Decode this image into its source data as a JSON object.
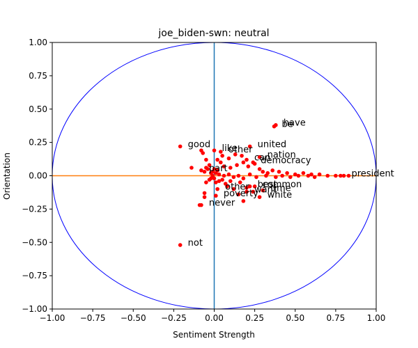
{
  "chart_data": {
    "type": "scatter",
    "title": "joe_biden-swn: neutral",
    "xlabel": "Sentiment Strength",
    "ylabel": "Orientation",
    "xlim": [
      -1.0,
      1.0
    ],
    "ylim": [
      -1.0,
      1.0
    ],
    "xticks": [
      "−1.00",
      "−0.75",
      "−0.50",
      "−0.25",
      "0.00",
      "0.25",
      "0.50",
      "0.75",
      "1.00"
    ],
    "yticks": [
      "−1.00",
      "−0.75",
      "−0.50",
      "−0.25",
      "0.00",
      "0.25",
      "0.50",
      "0.75",
      "1.00"
    ],
    "grid": false,
    "colors": {
      "points": "#ff0000",
      "circle": "#0000ff",
      "vertical_axis_line": "#1f77b4",
      "horizontal_axis_line": "#ff7f0e"
    },
    "labeled_points": [
      {
        "label": "be",
        "x": 0.37,
        "y": 0.37
      },
      {
        "label": "have",
        "x": 0.38,
        "y": 0.38
      },
      {
        "label": "good",
        "x": -0.21,
        "y": 0.22
      },
      {
        "label": "united",
        "x": 0.22,
        "y": 0.22
      },
      {
        "label": "like",
        "x": 0.0,
        "y": 0.19
      },
      {
        "label": "other",
        "x": 0.04,
        "y": 0.18
      },
      {
        "label": "nation",
        "x": 0.28,
        "y": 0.14
      },
      {
        "label": "democracy",
        "x": 0.24,
        "y": 0.1
      },
      {
        "label": "can",
        "x": 0.2,
        "y": 0.12
      },
      {
        "label": "part",
        "x": -0.08,
        "y": 0.04
      },
      {
        "label": "best",
        "x": 0.22,
        "y": -0.08
      },
      {
        "label": "common",
        "x": 0.25,
        "y": -0.08
      },
      {
        "label": "other",
        "x": 0.02,
        "y": -0.1
      },
      {
        "label": "want",
        "x": 0.2,
        "y": -0.12
      },
      {
        "label": "time",
        "x": 0.3,
        "y": -0.11
      },
      {
        "label": "poverty",
        "x": 0.01,
        "y": -0.15
      },
      {
        "label": "white",
        "x": 0.28,
        "y": -0.16
      },
      {
        "label": "never",
        "x": -0.08,
        "y": -0.22
      },
      {
        "label": "not",
        "x": -0.21,
        "y": -0.52
      },
      {
        "label": "president",
        "x": 0.8,
        "y": 0.0
      }
    ],
    "unlabeled_points": [
      {
        "x": -0.08,
        "y": 0.19
      },
      {
        "x": -0.07,
        "y": 0.17
      },
      {
        "x": -0.05,
        "y": 0.12
      },
      {
        "x": -0.14,
        "y": 0.06
      },
      {
        "x": -0.05,
        "y": 0.06
      },
      {
        "x": -0.04,
        "y": 0.05
      },
      {
        "x": -0.03,
        "y": 0.08
      },
      {
        "x": -0.06,
        "y": 0.03
      },
      {
        "x": -0.02,
        "y": -0.02
      },
      {
        "x": -0.01,
        "y": 0.03
      },
      {
        "x": 0.0,
        "y": 0.05
      },
      {
        "x": 0.01,
        "y": 0.02
      },
      {
        "x": 0.02,
        "y": 0.04
      },
      {
        "x": -0.02,
        "y": 0.02
      },
      {
        "x": -0.03,
        "y": -0.03
      },
      {
        "x": -0.05,
        "y": -0.05
      },
      {
        "x": -0.06,
        "y": -0.13
      },
      {
        "x": -0.06,
        "y": -0.16
      },
      {
        "x": -0.09,
        "y": -0.22
      },
      {
        "x": 0.01,
        "y": -0.05
      },
      {
        "x": 0.03,
        "y": -0.04
      },
      {
        "x": 0.05,
        "y": -0.03
      },
      {
        "x": 0.08,
        "y": -0.08
      },
      {
        "x": 0.12,
        "y": -0.1
      },
      {
        "x": 0.15,
        "y": -0.14
      },
      {
        "x": 0.18,
        "y": -0.19
      },
      {
        "x": 0.2,
        "y": -0.09
      },
      {
        "x": 0.24,
        "y": -0.12
      },
      {
        "x": 0.04,
        "y": 0.1
      },
      {
        "x": 0.06,
        "y": 0.07
      },
      {
        "x": 0.1,
        "y": 0.06
      },
      {
        "x": 0.14,
        "y": 0.08
      },
      {
        "x": 0.18,
        "y": 0.1
      },
      {
        "x": 0.21,
        "y": 0.07
      },
      {
        "x": 0.25,
        "y": 0.09
      },
      {
        "x": 0.28,
        "y": 0.05
      },
      {
        "x": 0.3,
        "y": 0.03
      },
      {
        "x": 0.33,
        "y": 0.02
      },
      {
        "x": 0.36,
        "y": 0.04
      },
      {
        "x": 0.4,
        "y": 0.03
      },
      {
        "x": 0.45,
        "y": 0.02
      },
      {
        "x": 0.5,
        "y": 0.01
      },
      {
        "x": 0.55,
        "y": 0.02
      },
      {
        "x": 0.6,
        "y": 0.01
      },
      {
        "x": 0.65,
        "y": 0.01
      },
      {
        "x": 0.7,
        "y": 0.0
      },
      {
        "x": 0.75,
        "y": 0.0
      },
      {
        "x": 0.78,
        "y": 0.0
      },
      {
        "x": 0.83,
        "y": 0.0
      },
      {
        "x": 0.06,
        "y": 0.0
      },
      {
        "x": 0.09,
        "y": 0.01
      },
      {
        "x": 0.12,
        "y": -0.01
      },
      {
        "x": 0.15,
        "y": 0.0
      },
      {
        "x": 0.18,
        "y": -0.02
      },
      {
        "x": 0.22,
        "y": 0.01
      },
      {
        "x": 0.26,
        "y": -0.01
      },
      {
        "x": 0.32,
        "y": 0.0
      },
      {
        "x": 0.38,
        "y": -0.01
      },
      {
        "x": 0.42,
        "y": 0.0
      },
      {
        "x": 0.47,
        "y": -0.01
      },
      {
        "x": 0.52,
        "y": 0.0
      },
      {
        "x": 0.58,
        "y": 0.0
      },
      {
        "x": 0.62,
        "y": -0.01
      },
      {
        "x": 0.03,
        "y": 0.01
      },
      {
        "x": 0.0,
        "y": -0.02
      },
      {
        "x": -0.01,
        "y": 0.0
      },
      {
        "x": 0.16,
        "y": -0.05
      },
      {
        "x": 0.1,
        "y": -0.04
      },
      {
        "x": 0.07,
        "y": -0.06
      },
      {
        "x": 0.02,
        "y": 0.12
      },
      {
        "x": 0.05,
        "y": 0.15
      },
      {
        "x": 0.09,
        "y": 0.13
      },
      {
        "x": 0.13,
        "y": 0.16
      },
      {
        "x": 0.17,
        "y": 0.15
      }
    ]
  }
}
